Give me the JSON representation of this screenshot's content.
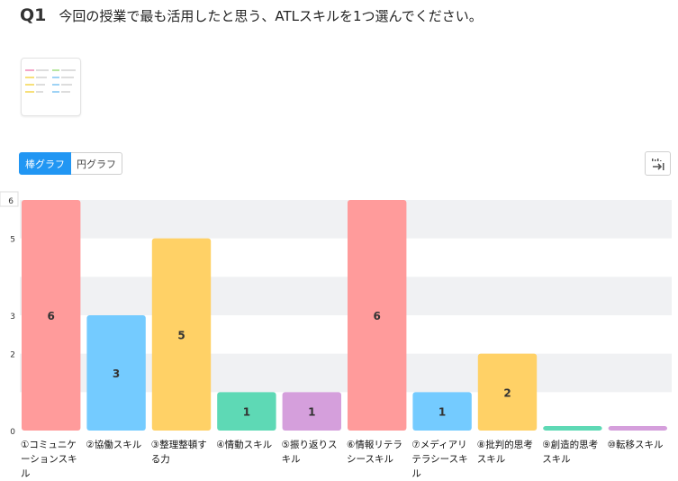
{
  "question": {
    "number": "Q1",
    "text": "今回の授業で最も活用したと思う、ATLスキルを1つ選んでください。"
  },
  "tabs": [
    {
      "label": "棒グラフ",
      "active": true
    },
    {
      "label": "円グラフ",
      "active": false
    }
  ],
  "export_icon": "export-icon",
  "colors": {
    "accent": "#2196f3",
    "band": "#f0f1f3",
    "pink": "#ff9b9b",
    "blue": "#74cbff",
    "yellow": "#ffd166",
    "teal": "#5ed9b5",
    "purple": "#d59fdc"
  },
  "chart_data": {
    "type": "bar",
    "categories": [
      "①コミュニケーションスキル",
      "②協働スキル",
      "③整理整頓する力",
      "④情動スキル",
      "⑤振り返りスキル",
      "⑥情報リテラシースキル",
      "⑦メディアリテラシースキル",
      "⑧批判的思考スキル",
      "⑨創造的思考スキル",
      "⑩転移スキル"
    ],
    "values": [
      6,
      3,
      5,
      1,
      1,
      6,
      1,
      2,
      0,
      0
    ],
    "bar_colors": [
      "#ff9b9b",
      "#74cbff",
      "#ffd166",
      "#5ed9b5",
      "#d59fdc",
      "#ff9b9b",
      "#74cbff",
      "#ffd166",
      "#5ed9b5",
      "#d59fdc"
    ],
    "yticks": [
      0,
      2,
      3,
      5,
      6
    ],
    "ylim": [
      0,
      6
    ],
    "grid": true
  }
}
